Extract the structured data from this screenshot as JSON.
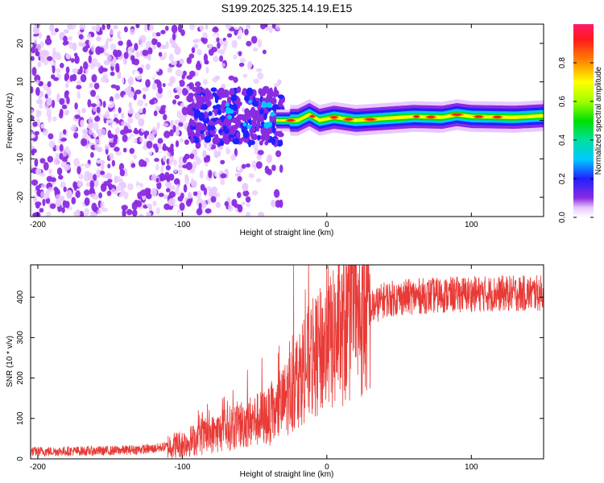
{
  "title": "S199.2025.325.14.19.E15",
  "chart_data": [
    {
      "type": "heatmap",
      "xlabel": "Height of straight line (km)",
      "ylabel": "Frequency (Hz)",
      "xlim": [
        -205,
        150
      ],
      "ylim": [
        -25,
        25
      ],
      "xticks": [
        {
          "value": -200,
          "label": "-200"
        },
        {
          "value": -100,
          "label": "-100"
        },
        {
          "value": 0,
          "label": "0"
        },
        {
          "value": 100,
          "label": "100"
        }
      ],
      "yticks": [
        {
          "value": 20,
          "label": "20"
        },
        {
          "value": 10,
          "label": "10"
        },
        {
          "value": 0,
          "label": "0"
        },
        {
          "value": -10,
          "label": "-10"
        },
        {
          "value": -20,
          "label": "-20"
        }
      ],
      "colorbar": {
        "label": "Normalized spectral amplitude",
        "range": [
          0,
          1
        ],
        "ticks": [
          {
            "value": 0.0,
            "label": "0.0"
          },
          {
            "value": 0.2,
            "label": "0.2"
          },
          {
            "value": 0.4,
            "label": "0.4"
          },
          {
            "value": 0.6,
            "label": "0.6"
          },
          {
            "value": 0.8,
            "label": "0.8"
          }
        ]
      },
      "ridge": [
        {
          "x": -33,
          "f": 0.0
        },
        {
          "x": -20,
          "f": 0.0
        },
        {
          "x": -12,
          "f": 1.5
        },
        {
          "x": -5,
          "f": 0.0
        },
        {
          "x": 5,
          "f": 0.8
        },
        {
          "x": 20,
          "f": 0.0
        },
        {
          "x": 40,
          "f": 0.5
        },
        {
          "x": 60,
          "f": 1.0
        },
        {
          "x": 80,
          "f": 0.8
        },
        {
          "x": 90,
          "f": 1.5
        },
        {
          "x": 100,
          "f": 1.0
        },
        {
          "x": 130,
          "f": 0.8
        },
        {
          "x": 150,
          "f": 1.2
        }
      ],
      "ridge_hot_spots": [
        -25,
        -10,
        5,
        15,
        30,
        62,
        72,
        90,
        105,
        118
      ]
    },
    {
      "type": "line",
      "xlabel": "Height of straight line (km)",
      "ylabel": "SNR (10 * v/v)",
      "xlim": [
        -205,
        150
      ],
      "ylim": [
        0,
        480
      ],
      "color": "#e83a36",
      "xticks": [
        {
          "value": -200,
          "label": "-200"
        },
        {
          "value": -100,
          "label": "-100"
        },
        {
          "value": 0,
          "label": "0"
        },
        {
          "value": 100,
          "label": "100"
        }
      ],
      "yticks": [
        {
          "value": 0,
          "label": "0"
        },
        {
          "value": 100,
          "label": "100"
        },
        {
          "value": 200,
          "label": "200"
        },
        {
          "value": 300,
          "label": "300"
        },
        {
          "value": 400,
          "label": "400"
        }
      ],
      "trend": [
        {
          "x": -205,
          "y": 18
        },
        {
          "x": -150,
          "y": 20
        },
        {
          "x": -120,
          "y": 25
        },
        {
          "x": -100,
          "y": 38
        },
        {
          "x": -80,
          "y": 60
        },
        {
          "x": -60,
          "y": 85
        },
        {
          "x": -45,
          "y": 100
        },
        {
          "x": -35,
          "y": 110
        },
        {
          "x": -25,
          "y": 170
        },
        {
          "x": -15,
          "y": 230
        },
        {
          "x": 0,
          "y": 280
        },
        {
          "x": 10,
          "y": 310
        },
        {
          "x": 20,
          "y": 340
        },
        {
          "x": 30,
          "y": 370
        },
        {
          "x": 40,
          "y": 395
        },
        {
          "x": 60,
          "y": 402
        },
        {
          "x": 100,
          "y": 408
        },
        {
          "x": 150,
          "y": 410
        }
      ],
      "peaks": [
        {
          "x": -23,
          "y": 480
        },
        {
          "x": -33,
          "y": 280
        },
        {
          "x": -45,
          "y": 250
        },
        {
          "x": -55,
          "y": 220
        }
      ]
    }
  ]
}
